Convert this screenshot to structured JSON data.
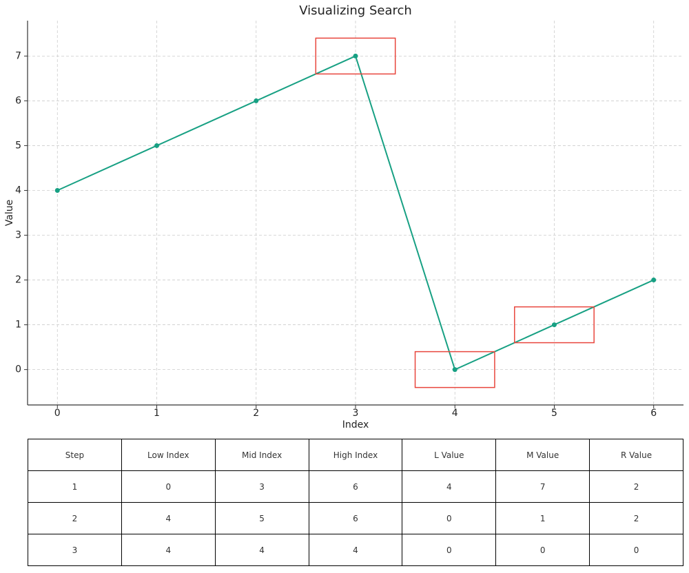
{
  "chart_data": {
    "type": "line",
    "title": "Visualizing Search",
    "x_label": "Index",
    "y_label": "Value",
    "x": [
      0,
      1,
      2,
      3,
      4,
      5,
      6
    ],
    "values": [
      4,
      5,
      6,
      7,
      0,
      1,
      2
    ],
    "color": "#17a083",
    "highlights": [
      3,
      5,
      4
    ],
    "highlight_color": "#e8453c",
    "xlim": [
      -0.3,
      6.3
    ],
    "xticks": [
      0,
      1,
      2,
      3,
      4,
      5,
      6
    ],
    "ylim": [
      -0.79,
      7.79
    ],
    "yticks": [
      0,
      1,
      2,
      3,
      4,
      5,
      6,
      7
    ],
    "grid": true
  },
  "table": {
    "columns": [
      "Step",
      "Low Index",
      "Mid Index",
      "High Index",
      "L Value",
      "M Value",
      "R Value"
    ],
    "rows": [
      [
        1,
        0,
        3,
        6,
        4,
        7,
        2
      ],
      [
        2,
        4,
        5,
        6,
        0,
        1,
        2
      ],
      [
        3,
        4,
        4,
        4,
        0,
        0,
        0
      ]
    ]
  }
}
